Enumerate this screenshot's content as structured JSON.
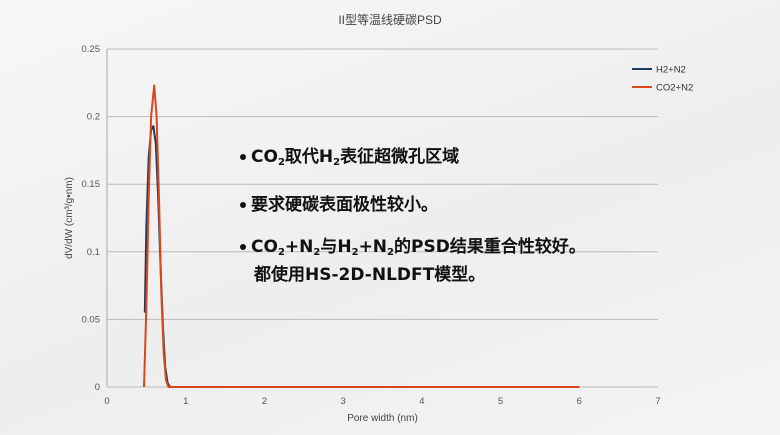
{
  "chart_data": {
    "type": "line",
    "title": "II型等温线硬碳PSD",
    "xlabel": "Pore width (nm)",
    "ylabel": "dV/dW (cm³/g•nm)",
    "xlim": [
      0,
      7
    ],
    "ylim": [
      0,
      0.25
    ],
    "xticks": [
      "0",
      "1",
      "2",
      "3",
      "4",
      "5",
      "6",
      "7"
    ],
    "yticks": [
      "0",
      "0.05",
      "0.1",
      "0.15",
      "0.2",
      "0.25"
    ],
    "grid": "horizontal",
    "legend": "top-right",
    "series": [
      {
        "name": "H2+N2",
        "color": "#1f3a5f",
        "points": [
          [
            0.48,
            0.055
          ],
          [
            0.5,
            0.12
          ],
          [
            0.53,
            0.17
          ],
          [
            0.56,
            0.19
          ],
          [
            0.59,
            0.193
          ],
          [
            0.62,
            0.18
          ],
          [
            0.65,
            0.14
          ],
          [
            0.68,
            0.09
          ],
          [
            0.71,
            0.045
          ],
          [
            0.74,
            0.015
          ],
          [
            0.77,
            0.003
          ],
          [
            0.8,
            0
          ],
          [
            6,
            0
          ]
        ]
      },
      {
        "name": "CO2+N2",
        "color": "#d9481c",
        "points": [
          [
            0.47,
            0
          ],
          [
            0.5,
            0.06
          ],
          [
            0.53,
            0.14
          ],
          [
            0.56,
            0.2
          ],
          [
            0.6,
            0.223
          ],
          [
            0.63,
            0.2
          ],
          [
            0.66,
            0.14
          ],
          [
            0.69,
            0.07
          ],
          [
            0.72,
            0.025
          ],
          [
            0.75,
            0.005
          ],
          [
            0.78,
            0
          ],
          [
            6,
            0
          ]
        ]
      }
    ]
  },
  "annotations": [
    [
      {
        "t": "CO"
      },
      {
        "sub": "2"
      },
      {
        "t": "取代H"
      },
      {
        "sub": "2"
      },
      {
        "t": "表征超微孔区域"
      }
    ],
    [
      {
        "t": "要求硬碳表面极性较小。"
      }
    ],
    [
      {
        "t": "CO"
      },
      {
        "sub": "2"
      },
      {
        "t": "+N"
      },
      {
        "sub": "2"
      },
      {
        "t": "与H"
      },
      {
        "sub": "2"
      },
      {
        "t": "+N"
      },
      {
        "sub": "2"
      },
      {
        "t": "的PSD结果重合性较好。"
      },
      {
        "br": "都使用HS-2D-NLDFT模型。"
      }
    ]
  ]
}
